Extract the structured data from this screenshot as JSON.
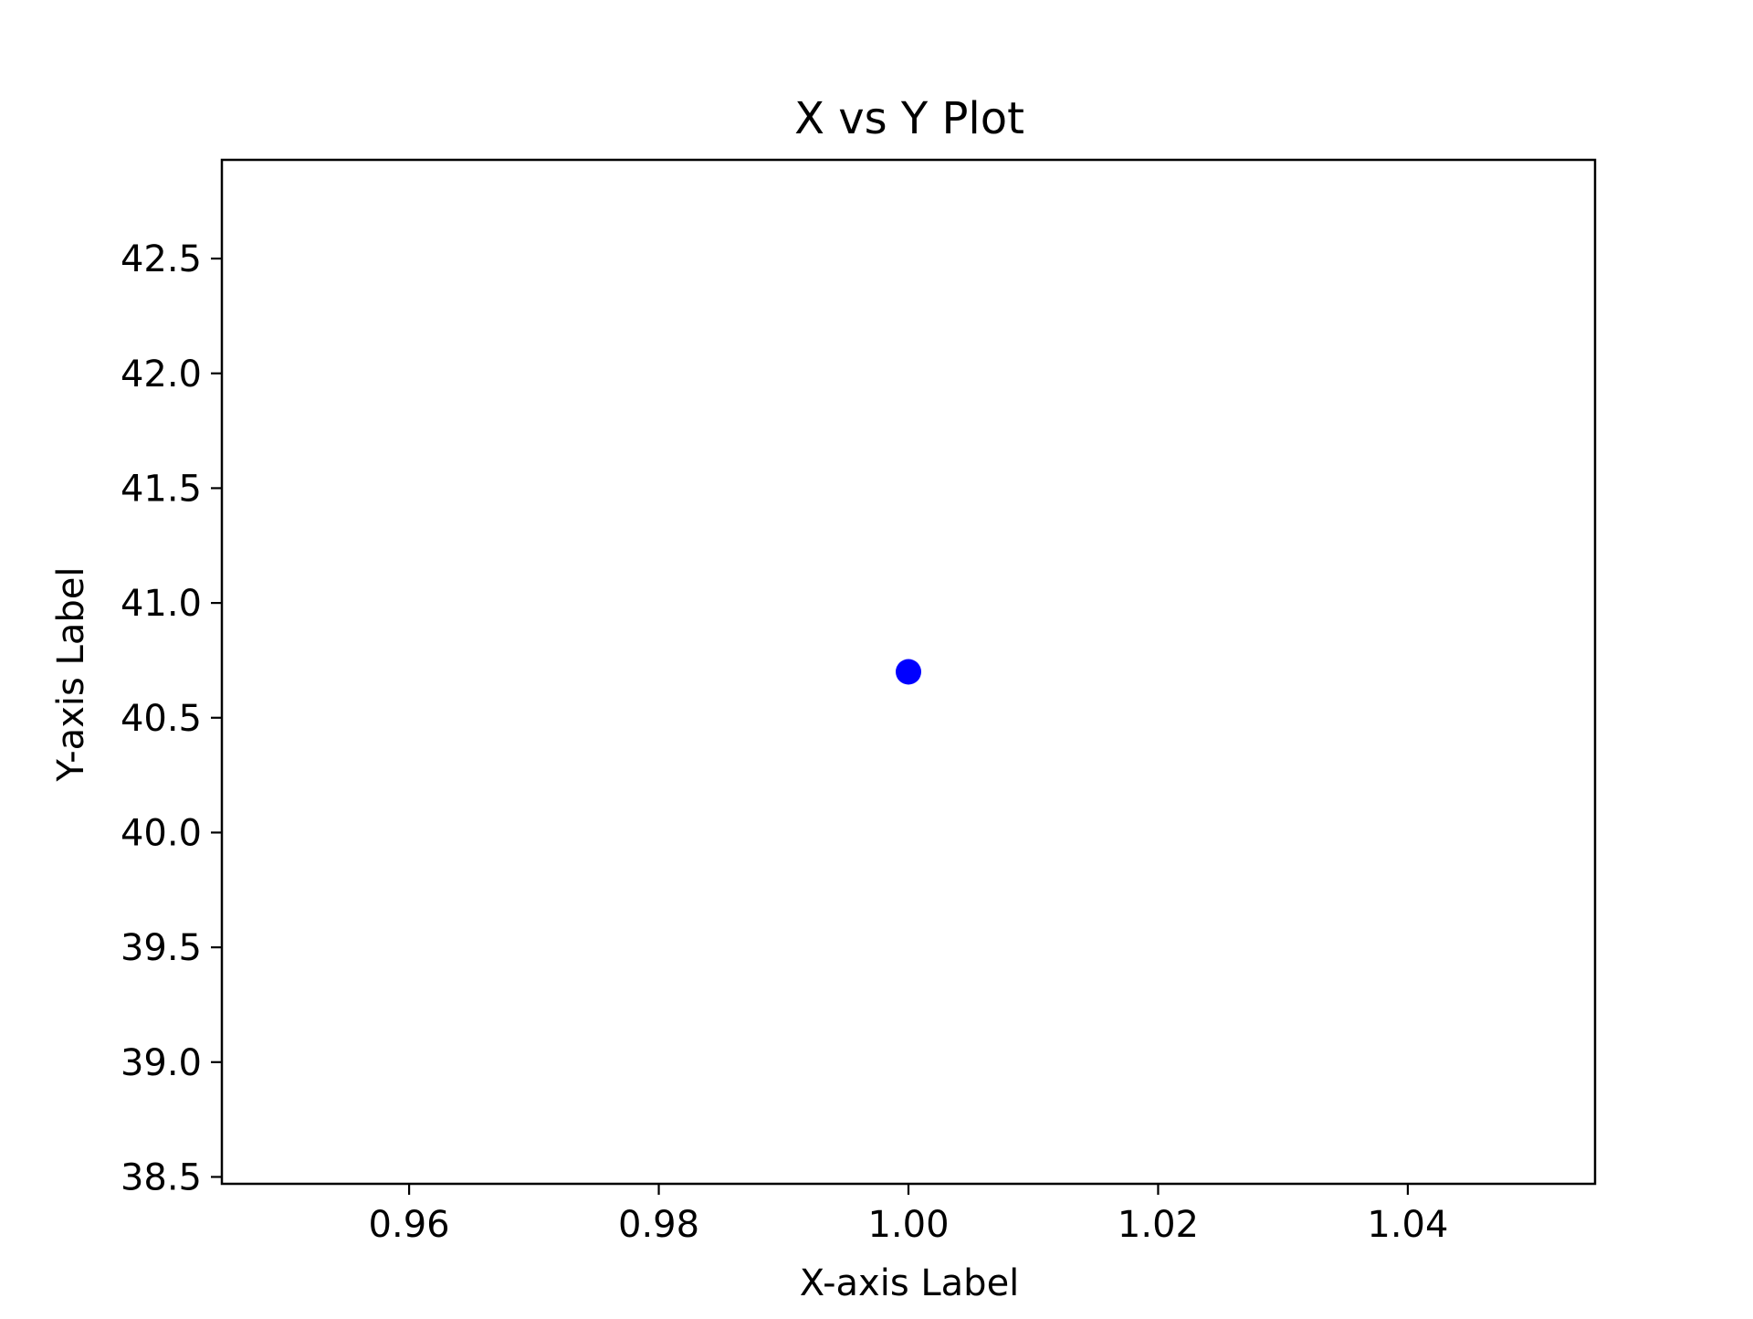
{
  "chart_data": {
    "type": "scatter",
    "title": "X vs Y Plot",
    "xlabel": "X-axis Label",
    "ylabel": "Y-axis Label",
    "xlim": [
      0.945,
      1.055
    ],
    "ylim": [
      38.47,
      42.93
    ],
    "xticks": [
      0.96,
      0.98,
      1.0,
      1.02,
      1.04
    ],
    "xtick_labels": [
      "0.96",
      "0.98",
      "1.00",
      "1.02",
      "1.04"
    ],
    "yticks": [
      38.5,
      39.0,
      39.5,
      40.0,
      40.5,
      41.0,
      41.5,
      42.0,
      42.5
    ],
    "ytick_labels": [
      "38.5",
      "39.0",
      "39.5",
      "40.0",
      "40.5",
      "41.0",
      "41.5",
      "42.0",
      "42.5"
    ],
    "grid": false,
    "series": [
      {
        "points": [
          {
            "x": 1.0,
            "y": 40.7
          }
        ],
        "color": "#0000ff",
        "marker": "circle"
      }
    ]
  }
}
